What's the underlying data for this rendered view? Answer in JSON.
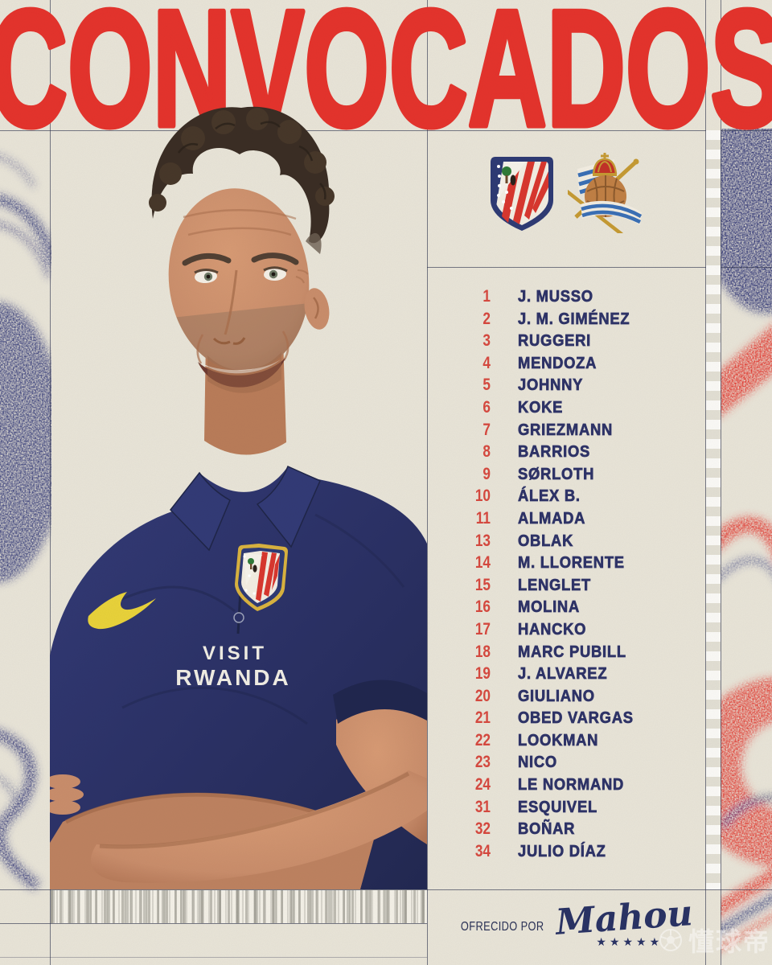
{
  "title": "CONVOCADOS",
  "header": {
    "home_crest": "atletico-madrid-crest",
    "away_crest": "real-sociedad-crest"
  },
  "squad": [
    {
      "number": "1",
      "name": "J. MUSSO"
    },
    {
      "number": "2",
      "name": "J. M. GIMÉNEZ"
    },
    {
      "number": "3",
      "name": "RUGGERI"
    },
    {
      "number": "4",
      "name": "MENDOZA"
    },
    {
      "number": "5",
      "name": "JOHNNY"
    },
    {
      "number": "6",
      "name": "KOKE"
    },
    {
      "number": "7",
      "name": "GRIEZMANN"
    },
    {
      "number": "8",
      "name": "BARRIOS"
    },
    {
      "number": "9",
      "name": "SØRLOTH"
    },
    {
      "number": "10",
      "name": "ÁLEX B."
    },
    {
      "number": "11",
      "name": "ALMADA"
    },
    {
      "number": "13",
      "name": "OBLAK"
    },
    {
      "number": "14",
      "name": "M. LLORENTE"
    },
    {
      "number": "15",
      "name": "LENGLET"
    },
    {
      "number": "16",
      "name": "MOLINA"
    },
    {
      "number": "17",
      "name": "HANCKO"
    },
    {
      "number": "18",
      "name": "MARC PUBILL"
    },
    {
      "number": "19",
      "name": "J. ALVAREZ"
    },
    {
      "number": "20",
      "name": "GIULIANO"
    },
    {
      "number": "21",
      "name": "OBED VARGAS"
    },
    {
      "number": "22",
      "name": "LOOKMAN"
    },
    {
      "number": "23",
      "name": "NICO"
    },
    {
      "number": "24",
      "name": "LE NORMAND"
    },
    {
      "number": "31",
      "name": "ESQUIVEL"
    },
    {
      "number": "32",
      "name": "BOÑAR"
    },
    {
      "number": "34",
      "name": "JULIO DÍAZ"
    }
  ],
  "shirt": {
    "sponsor_line1": "VISIT",
    "sponsor_line2": "RWANDA"
  },
  "footer": {
    "offered_by": "OFRECIDO POR",
    "brand": "Mahou",
    "stars": "★★★★★"
  },
  "watermark": {
    "text": "懂球帝",
    "icon": "football-icon"
  },
  "colors": {
    "background": "#e8e4d8",
    "title_red": "#e4332c",
    "number_red": "#d6493f",
    "name_navy": "#2e3368",
    "grid_line": "#2d324e",
    "polo_navy": "#2b3166",
    "texture_navy": "#343a78",
    "texture_red": "#e23b31"
  }
}
